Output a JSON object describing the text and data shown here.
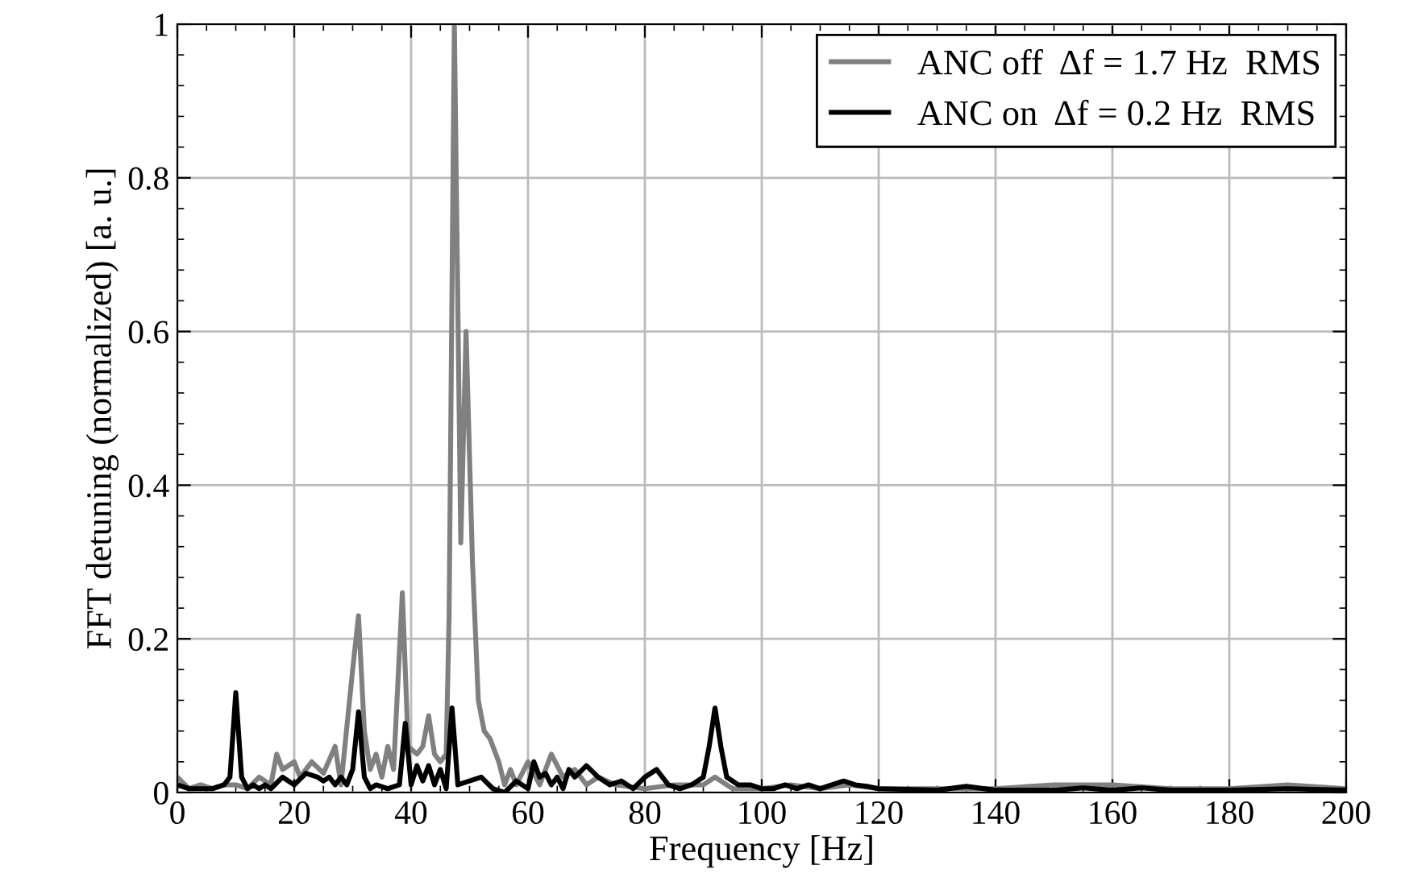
{
  "chart_data": {
    "type": "line",
    "xlabel": "Frequency [Hz]",
    "ylabel": "FFT detuning (normalized) [a. u.]",
    "xlim": [
      0,
      200
    ],
    "ylim": [
      0,
      1
    ],
    "xticks": [
      0,
      20,
      40,
      60,
      80,
      100,
      120,
      140,
      160,
      180,
      200
    ],
    "yticks": [
      0,
      0.2,
      0.4,
      0.6,
      0.8,
      1
    ],
    "grid": true,
    "legend": "top right",
    "line_style": "solid",
    "marker": "none",
    "series": [
      {
        "name": "ANC off  Δf = 1.7 Hz  RMS",
        "color": "#808080",
        "x": [
          0,
          2,
          4,
          6,
          8,
          10,
          12,
          14,
          16,
          17,
          18,
          20,
          21,
          23,
          25,
          27,
          28,
          30,
          31,
          32,
          33,
          34,
          35,
          36,
          37,
          38.5,
          39.5,
          41,
          42,
          43,
          44,
          45,
          46,
          46.5,
          47.4,
          48.5,
          49.4,
          50.5,
          51.5,
          52.5,
          53.5,
          55,
          56,
          57,
          58,
          60,
          62,
          64,
          66,
          68,
          70,
          72,
          75,
          80,
          85,
          90,
          92,
          95,
          100,
          105,
          110,
          115,
          120,
          130,
          140,
          150,
          160,
          170,
          180,
          190,
          200
        ],
        "values": [
          0.02,
          0.005,
          0.01,
          0.005,
          0.01,
          0.01,
          0.005,
          0.02,
          0.01,
          0.05,
          0.03,
          0.04,
          0.02,
          0.04,
          0.025,
          0.06,
          0.01,
          0.16,
          0.23,
          0.08,
          0.03,
          0.05,
          0.02,
          0.06,
          0.03,
          0.26,
          0.06,
          0.05,
          0.06,
          0.1,
          0.05,
          0.04,
          0.05,
          0.23,
          1.0,
          0.325,
          0.6,
          0.3,
          0.12,
          0.08,
          0.07,
          0.04,
          0.01,
          0.03,
          0.01,
          0.04,
          0.01,
          0.05,
          0.02,
          0.03,
          0.01,
          0.02,
          0.01,
          0.005,
          0.01,
          0.01,
          0.02,
          0.005,
          0.005,
          0.01,
          0.005,
          0.01,
          0.005,
          0.005,
          0.005,
          0.01,
          0.01,
          0.005,
          0.005,
          0.01,
          0.005
        ]
      },
      {
        "name": "ANC on  Δf = 0.2 Hz  RMS",
        "color": "#000000",
        "x": [
          0,
          2,
          4,
          6,
          8,
          9,
          10,
          11,
          12,
          13,
          14,
          15,
          16,
          18,
          20,
          22,
          24,
          25,
          26,
          27,
          28,
          29,
          30,
          31,
          32,
          33,
          34,
          36,
          38,
          39,
          40,
          41,
          42,
          43,
          44,
          45,
          46,
          47,
          48,
          50,
          52,
          54,
          56,
          58,
          60,
          61,
          62,
          63,
          64,
          65,
          66,
          67,
          68,
          70,
          72,
          74,
          76,
          78,
          80,
          82,
          84,
          86,
          88,
          90,
          91,
          92,
          93,
          94,
          96,
          98,
          100,
          102,
          104,
          106,
          108,
          110,
          112,
          114,
          116,
          118,
          120,
          130,
          135,
          140,
          150,
          155,
          160,
          165,
          170,
          180,
          190,
          200
        ],
        "values": [
          0.01,
          0.005,
          0.005,
          0.005,
          0.01,
          0.02,
          0.13,
          0.02,
          0.005,
          0.01,
          0.005,
          0.01,
          0.005,
          0.02,
          0.01,
          0.025,
          0.02,
          0.015,
          0.02,
          0.01,
          0.02,
          0.01,
          0.03,
          0.105,
          0.02,
          0.005,
          0.01,
          0.005,
          0.01,
          0.09,
          0.01,
          0.035,
          0.015,
          0.035,
          0.01,
          0.03,
          0.005,
          0.11,
          0.01,
          0.015,
          0.02,
          0.005,
          0.0,
          0.015,
          0.005,
          0.04,
          0.02,
          0.025,
          0.01,
          0.02,
          0.005,
          0.03,
          0.02,
          0.035,
          0.02,
          0.01,
          0.015,
          0.005,
          0.02,
          0.03,
          0.01,
          0.005,
          0.01,
          0.02,
          0.06,
          0.11,
          0.06,
          0.02,
          0.01,
          0.01,
          0.005,
          0.005,
          0.01,
          0.005,
          0.01,
          0.005,
          0.01,
          0.015,
          0.01,
          0.008,
          0.005,
          0.003,
          0.008,
          0.003,
          0.003,
          0.006,
          0.003,
          0.006,
          0.003,
          0.003,
          0.005,
          0.003
        ]
      }
    ]
  }
}
